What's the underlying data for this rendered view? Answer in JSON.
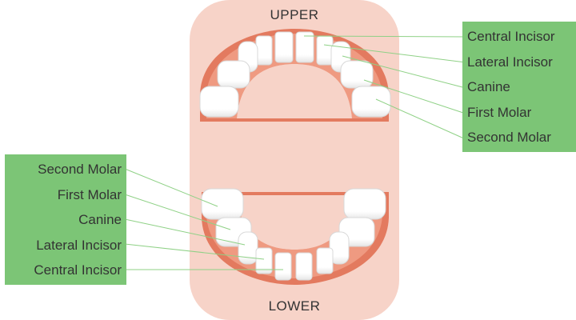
{
  "jaws": {
    "upper": "UPPER",
    "lower": "LOWER"
  },
  "upper_labels": [
    "Central Incisor",
    "Lateral Incisor",
    "Canine",
    "First Molar",
    "Second Molar"
  ],
  "lower_labels": [
    "Second Molar",
    "First Molar",
    "Canine",
    "Lateral Incisor",
    "Central Incisor"
  ],
  "colors": {
    "mouth_background": "#f7d3c8",
    "gum": "#ef9a81",
    "gum_edge": "#e37a5f",
    "tooth": "#ffffff",
    "tooth_shadow": "#e3e3e3",
    "label_box": "#7cc576",
    "leader_line": "#8fd186",
    "text": "#333333"
  }
}
